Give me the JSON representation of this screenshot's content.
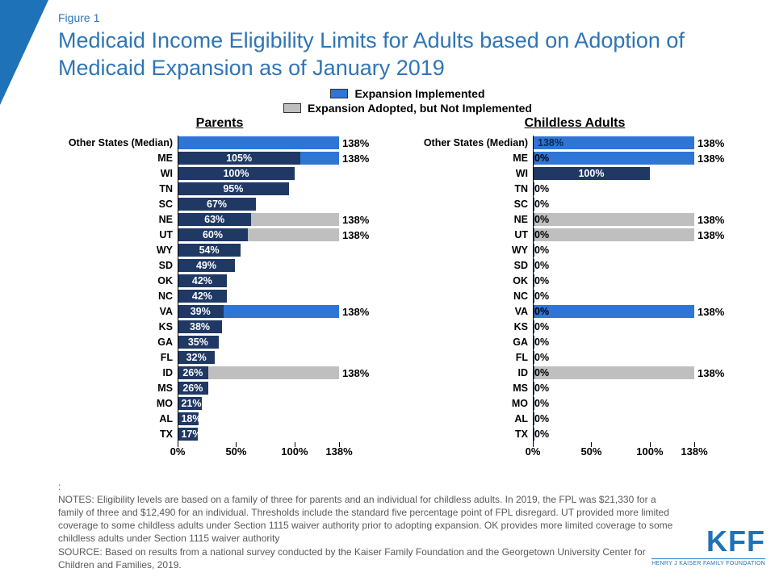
{
  "figure_label": "Figure 1",
  "title": "Medicaid Income Eligibility Limits for Adults based on Adoption of Medicaid Expansion as of January 2019",
  "colors": {
    "brand": "#1e72b8",
    "expansion_implemented": "#2e75d6",
    "expansion_adopted_not_impl": "#bfbfbf",
    "current_bar": "#1f3864",
    "text": "#000000",
    "notes": "#595959",
    "background": "#ffffff"
  },
  "legend": [
    {
      "label": "Expansion Implemented",
      "color_key": "expansion_implemented"
    },
    {
      "label": "Expansion Adopted, but Not Implemented",
      "color_key": "expansion_adopted_not_impl"
    }
  ],
  "axis": {
    "max": 138,
    "ticks": [
      {
        "pos": 0,
        "label": "0%"
      },
      {
        "pos": 50,
        "label": "50%"
      },
      {
        "pos": 100,
        "label": "100%"
      },
      {
        "pos": 138,
        "label": "138%"
      }
    ]
  },
  "charts": [
    {
      "title": "Parents",
      "rows": [
        {
          "label": "Other States (Median)",
          "dark": null,
          "overlay": {
            "value": 138,
            "kind": "implemented"
          },
          "end": "138%"
        },
        {
          "label": "ME",
          "dark": 105,
          "overlay": {
            "value": 138,
            "kind": "implemented"
          },
          "end": "138%"
        },
        {
          "label": "WI",
          "dark": 100,
          "overlay": null,
          "end": ""
        },
        {
          "label": "TN",
          "dark": 95,
          "overlay": null,
          "end": ""
        },
        {
          "label": "SC",
          "dark": 67,
          "overlay": null,
          "end": ""
        },
        {
          "label": "NE",
          "dark": 63,
          "overlay": {
            "value": 138,
            "kind": "adopted"
          },
          "end": "138%"
        },
        {
          "label": "UT",
          "dark": 60,
          "overlay": {
            "value": 138,
            "kind": "adopted"
          },
          "end": "138%"
        },
        {
          "label": "WY",
          "dark": 54,
          "overlay": null,
          "end": ""
        },
        {
          "label": "SD",
          "dark": 49,
          "overlay": null,
          "end": ""
        },
        {
          "label": "OK",
          "dark": 42,
          "overlay": null,
          "end": ""
        },
        {
          "label": "NC",
          "dark": 42,
          "overlay": null,
          "end": ""
        },
        {
          "label": "VA",
          "dark": 39,
          "overlay": {
            "value": 138,
            "kind": "implemented"
          },
          "end": "138%"
        },
        {
          "label": "KS",
          "dark": 38,
          "overlay": null,
          "end": ""
        },
        {
          "label": "GA",
          "dark": 35,
          "overlay": null,
          "end": ""
        },
        {
          "label": "FL",
          "dark": 32,
          "overlay": null,
          "end": ""
        },
        {
          "label": "ID",
          "dark": 26,
          "overlay": {
            "value": 138,
            "kind": "adopted"
          },
          "end": "138%"
        },
        {
          "label": "MS",
          "dark": 26,
          "overlay": null,
          "end": ""
        },
        {
          "label": "MO",
          "dark": 21,
          "overlay": null,
          "end": ""
        },
        {
          "label": "AL",
          "dark": 18,
          "overlay": null,
          "end": ""
        },
        {
          "label": "TX",
          "dark": 17,
          "overlay": null,
          "end": ""
        }
      ]
    },
    {
      "title": "Childless  Adults",
      "rows": [
        {
          "label": "Other States (Median)",
          "dark": null,
          "dark_label": "138%",
          "overlay": {
            "value": 138,
            "kind": "implemented"
          },
          "end": "138%"
        },
        {
          "label": "ME",
          "dark": 0,
          "overlay": {
            "value": 138,
            "kind": "implemented"
          },
          "end": "138%"
        },
        {
          "label": "WI",
          "dark": 100,
          "overlay": null,
          "end": ""
        },
        {
          "label": "TN",
          "dark": 0,
          "overlay": null,
          "end": ""
        },
        {
          "label": "SC",
          "dark": 0,
          "overlay": null,
          "end": ""
        },
        {
          "label": "NE",
          "dark": 0,
          "overlay": {
            "value": 138,
            "kind": "adopted"
          },
          "end": "138%"
        },
        {
          "label": "UT",
          "dark": 0,
          "overlay": {
            "value": 138,
            "kind": "adopted"
          },
          "end": "138%"
        },
        {
          "label": "WY",
          "dark": 0,
          "overlay": null,
          "end": ""
        },
        {
          "label": "SD",
          "dark": 0,
          "overlay": null,
          "end": ""
        },
        {
          "label": "OK",
          "dark": 0,
          "overlay": null,
          "end": ""
        },
        {
          "label": "NC",
          "dark": 0,
          "overlay": null,
          "end": ""
        },
        {
          "label": "VA",
          "dark": 0,
          "overlay": {
            "value": 138,
            "kind": "implemented"
          },
          "end": "138%"
        },
        {
          "label": "KS",
          "dark": 0,
          "overlay": null,
          "end": ""
        },
        {
          "label": "GA",
          "dark": 0,
          "overlay": null,
          "end": ""
        },
        {
          "label": "FL",
          "dark": 0,
          "overlay": null,
          "end": ""
        },
        {
          "label": "ID",
          "dark": 0,
          "overlay": {
            "value": 138,
            "kind": "adopted"
          },
          "end": "138%"
        },
        {
          "label": "MS",
          "dark": 0,
          "overlay": null,
          "end": ""
        },
        {
          "label": "MO",
          "dark": 0,
          "overlay": null,
          "end": ""
        },
        {
          "label": "AL",
          "dark": 0,
          "overlay": null,
          "end": ""
        },
        {
          "label": "TX",
          "dark": 0,
          "overlay": null,
          "end": ""
        }
      ]
    }
  ],
  "notes": ":\nNOTES: Eligibility levels are based on a family of three for parents and an individual for childless adults. In 2019, the FPL was $21,330 for a family of three and $12,490 for an individual. Thresholds include the standard five percentage point of FPL disregard. UT provided more limited coverage to some childless adults under Section 1115 waiver authority prior to adopting expansion. OK provides more limited coverage to some childless adults under Section 1115 waiver authority\nSOURCE: Based on results from a national survey conducted by the Kaiser Family Foundation and the Georgetown University Center for Children and Families, 2019.",
  "kff": {
    "big": "KFF",
    "small": "HENRY J KAISER FAMILY FOUNDATION"
  }
}
